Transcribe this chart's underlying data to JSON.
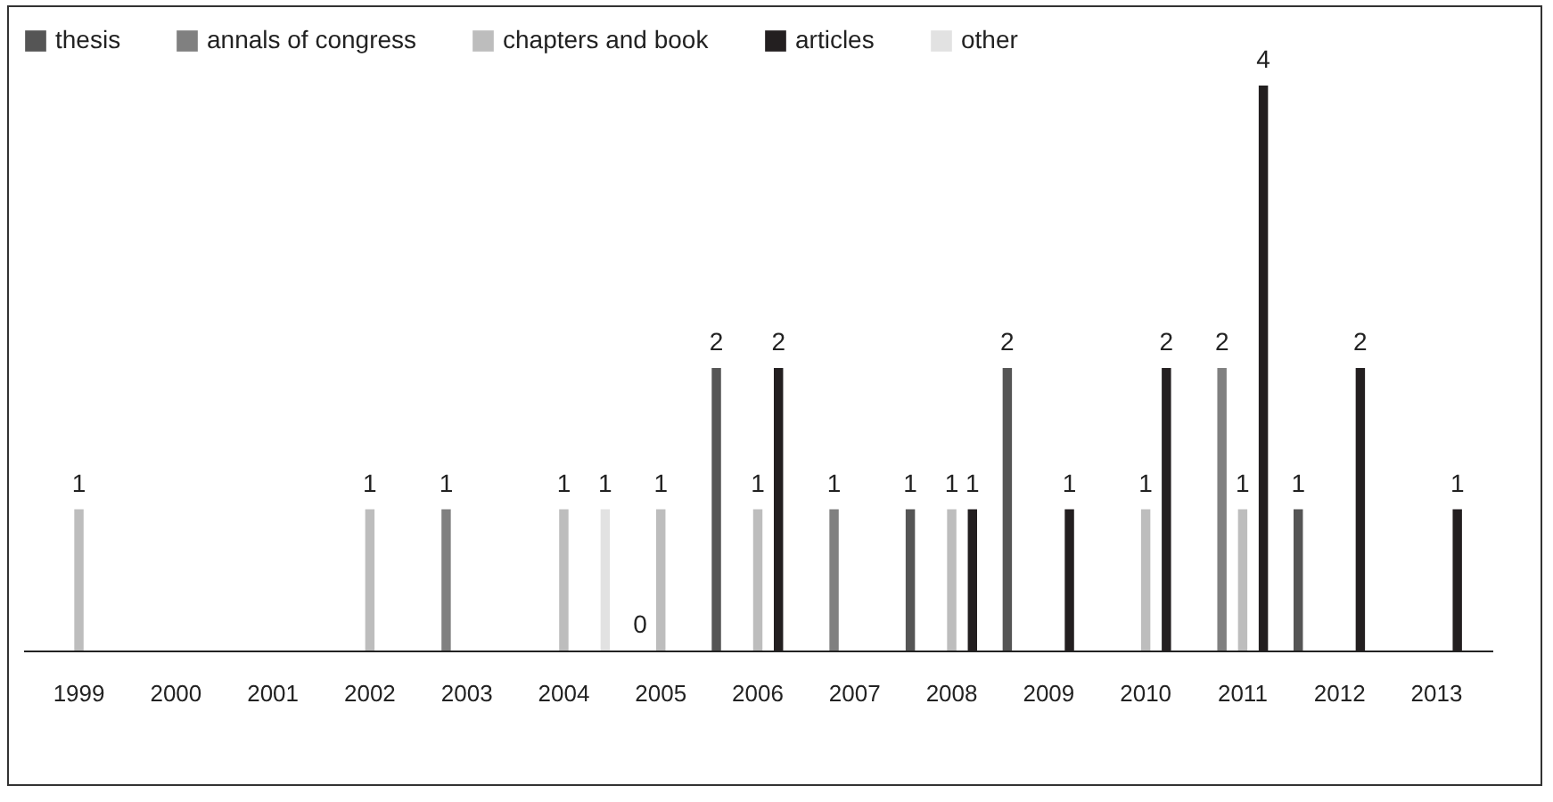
{
  "chart_data": {
    "type": "bar",
    "categories": [
      "1999",
      "2000",
      "2001",
      "2002",
      "2003",
      "2004",
      "2005",
      "2006",
      "2007",
      "2008",
      "2009",
      "2010",
      "2011",
      "2012",
      "2013"
    ],
    "series": [
      {
        "name": "thesis",
        "color": "#555555",
        "values": [
          null,
          null,
          null,
          null,
          null,
          null,
          null,
          2,
          null,
          1,
          2,
          null,
          null,
          1,
          null
        ]
      },
      {
        "name": "annals of congress",
        "color": "#808080",
        "values": [
          null,
          null,
          null,
          null,
          1,
          null,
          0,
          null,
          1,
          null,
          null,
          null,
          2,
          null,
          null
        ]
      },
      {
        "name": "chapters and book",
        "color": "#bdbdbd",
        "values": [
          1,
          null,
          null,
          1,
          null,
          1,
          1,
          1,
          null,
          1,
          null,
          1,
          1,
          null,
          null
        ]
      },
      {
        "name": "articles",
        "color": "#231f20",
        "values": [
          null,
          null,
          null,
          null,
          null,
          null,
          null,
          2,
          null,
          1,
          1,
          2,
          4,
          2,
          1
        ]
      },
      {
        "name": "other",
        "color": "#e2e2e2",
        "values": [
          null,
          null,
          null,
          null,
          null,
          1,
          null,
          null,
          null,
          null,
          null,
          null,
          null,
          null,
          null
        ]
      }
    ],
    "data_labels": true,
    "legend": "top",
    "grid": false
  }
}
